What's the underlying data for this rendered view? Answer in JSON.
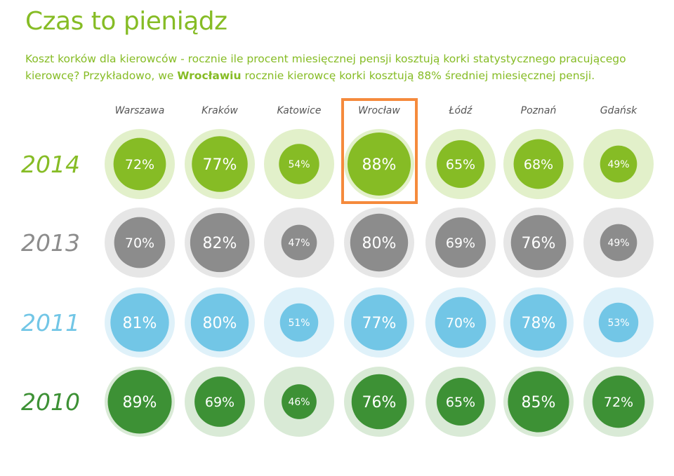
{
  "title": "Czas to pieniądz",
  "subtitle": {
    "part1": "Koszt korków dla kierowców - rocznie ile procent miesięcznej pensji kosztują korki statystycznego pracującego kierowcę? Przykładowo, we ",
    "bold": "Wrocławiu",
    "part2": " rocznie kierowcę korki kosztują 88% średniej miesięcznej pensji."
  },
  "highlight": {
    "city": "Wrocław",
    "color": "#f58a3c"
  },
  "chart_data": {
    "type": "bubble-grid",
    "categories": [
      "Warszawa",
      "Kraków",
      "Katowice",
      "Wrocław",
      "Łódź",
      "Poznań",
      "Gdańsk"
    ],
    "series": [
      {
        "name": "2014",
        "color": "#86bc25",
        "halo": "#e2f0ca",
        "label_color": "#86bc25",
        "values": [
          72,
          77,
          54,
          88,
          65,
          68,
          49
        ]
      },
      {
        "name": "2013",
        "color": "#8c8c8c",
        "halo": "#e6e6e6",
        "label_color": "#8c8c8c",
        "values": [
          70,
          82,
          47,
          80,
          69,
          76,
          49
        ]
      },
      {
        "name": "2011",
        "color": "#72c6e6",
        "halo": "#dff1f9",
        "label_color": "#72c6e6",
        "values": [
          81,
          80,
          51,
          77,
          70,
          78,
          53
        ]
      },
      {
        "name": "2010",
        "color": "#3d9135",
        "halo": "#d9ead6",
        "label_color": "#3d9135",
        "values": [
          89,
          69,
          46,
          76,
          65,
          85,
          72
        ]
      }
    ],
    "value_suffix": "%",
    "max_value": 100
  }
}
